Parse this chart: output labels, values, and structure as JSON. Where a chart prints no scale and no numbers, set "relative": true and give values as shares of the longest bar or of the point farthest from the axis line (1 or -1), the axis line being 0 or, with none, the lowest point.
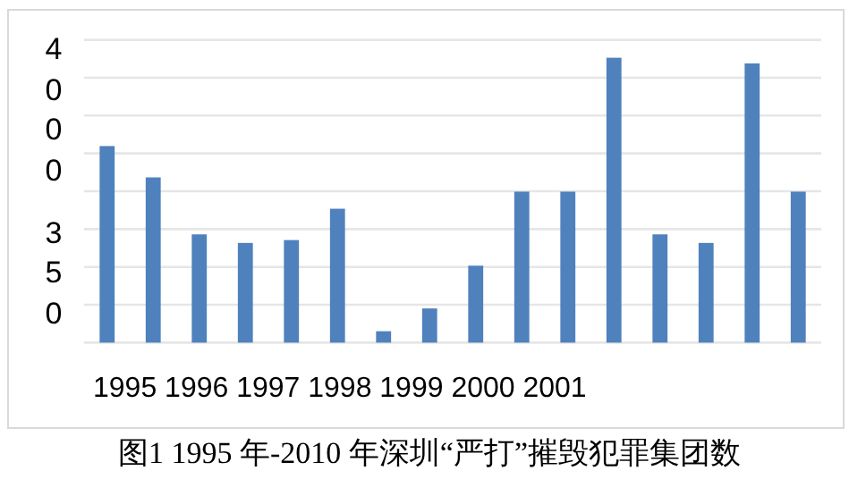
{
  "chart_data": {
    "type": "bar",
    "relative": true,
    "grid": true,
    "title": "图1 1995 年-2010 年深圳“严打”摧毁犯罪集团数",
    "xlabel": "1995 1996 1997 1998 1999 2000 2001",
    "annotations": [
      "4",
      "0",
      "0",
      "0",
      "3",
      "5",
      "0"
    ],
    "categories": [
      null,
      null,
      null,
      null,
      null,
      null,
      null,
      null,
      null,
      null,
      null,
      null,
      null,
      null,
      null,
      null
    ],
    "color": "#4f81bd",
    "values": [
      0.69,
      0.58,
      0.38,
      0.35,
      0.36,
      0.47,
      0.04,
      0.12,
      0.27,
      0.53,
      0.53,
      1,
      0.38,
      0.35,
      0.98,
      0.53
    ]
  }
}
